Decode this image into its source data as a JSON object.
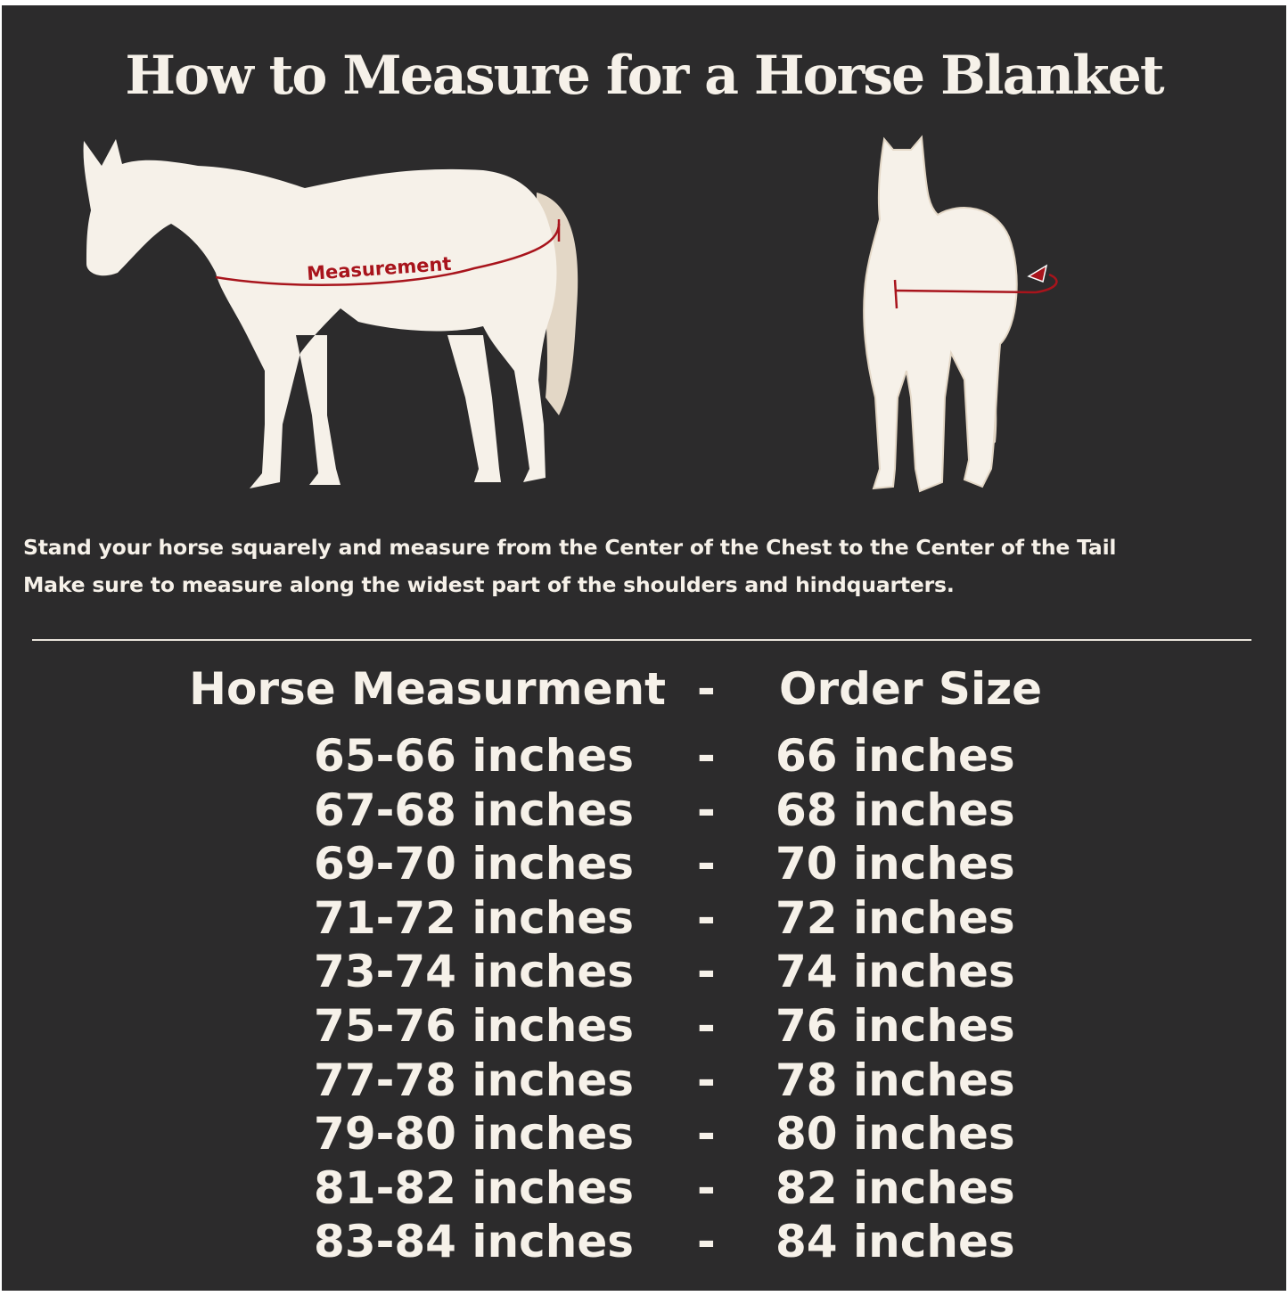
{
  "title": "How to Measure for a Horse Blanket",
  "illustration": {
    "side_label": "Measurement",
    "colors": {
      "background": "#2c2b2c",
      "horse": "#f6f1e9",
      "tail": "#e3d7c6",
      "measure_line": "#a8141c"
    }
  },
  "instructions": [
    "Stand your horse squarely and measure from the Center of the Chest to the Center of the Tail",
    "Make sure to measure along the widest part of the shoulders and hindquarters."
  ],
  "table": {
    "header": {
      "left": "Horse Measurment",
      "sep": "-",
      "right": "Order Size"
    },
    "rows": [
      {
        "measurement": "65-66 inches",
        "sep": "-",
        "size": "66 inches"
      },
      {
        "measurement": "67-68 inches",
        "sep": "-",
        "size": "68 inches"
      },
      {
        "measurement": "69-70 inches",
        "sep": "-",
        "size": "70 inches"
      },
      {
        "measurement": "71-72 inches",
        "sep": "-",
        "size": "72 inches"
      },
      {
        "measurement": "73-74 inches",
        "sep": "-",
        "size": "74 inches"
      },
      {
        "measurement": "75-76 inches",
        "sep": "-",
        "size": "76 inches"
      },
      {
        "measurement": "77-78 inches",
        "sep": "-",
        "size": "78 inches"
      },
      {
        "measurement": "79-80 inches",
        "sep": "-",
        "size": "80 inches"
      },
      {
        "measurement": "81-82 inches",
        "sep": "-",
        "size": "82 inches"
      },
      {
        "measurement": "83-84 inches",
        "sep": "-",
        "size": "84 inches"
      }
    ]
  }
}
